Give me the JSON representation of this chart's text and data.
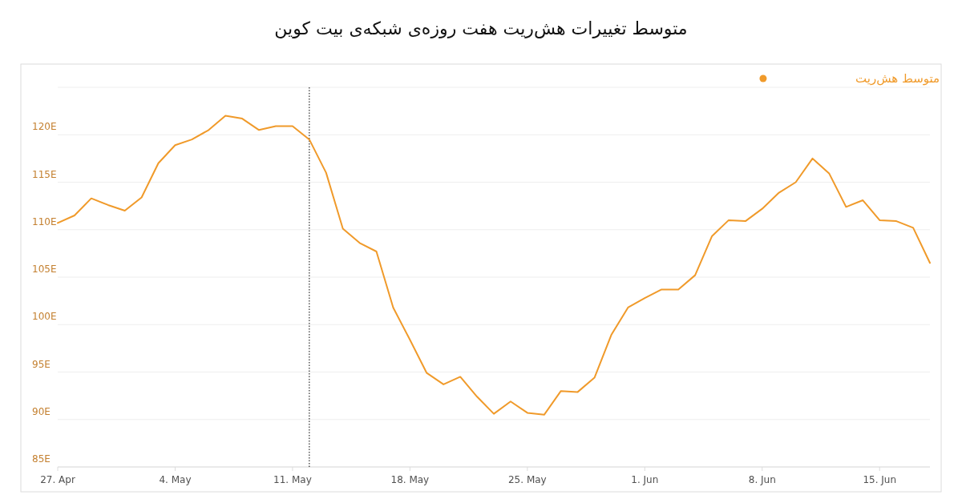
{
  "chart_data": {
    "type": "line",
    "title": "متوسط تغییرات هش‌ریت هفت روزه‌ی شبکه‌ی بیت کوین",
    "x": [
      "--04-27",
      "--04-28",
      "--04-29",
      "--04-30",
      "--05-01",
      "--05-02",
      "--05-03",
      "--05-04",
      "--05-05",
      "--05-06",
      "--05-07",
      "--05-08",
      "--05-09",
      "--05-10",
      "--05-11",
      "--05-12",
      "--05-13",
      "--05-14",
      "--05-15",
      "--05-16",
      "--05-17",
      "--05-18",
      "--05-19",
      "--05-20",
      "--05-21",
      "--05-22",
      "--05-23",
      "--05-24",
      "--05-25",
      "--05-26",
      "--05-27",
      "--05-28",
      "--05-29",
      "--05-30",
      "--05-31",
      "--06-01",
      "--06-02",
      "--06-03",
      "--06-04",
      "--06-05",
      "--06-06",
      "--06-07",
      "--06-08",
      "--06-09",
      "--06-10",
      "--06-11",
      "--06-12",
      "--06-13",
      "--06-14",
      "--06-15",
      "--06-16",
      "--06-17",
      "--06-18"
    ],
    "series": [
      {
        "name": "متوسط هش‌ریت",
        "color": "#f09a2a",
        "values": [
          110.7,
          111.5,
          113.3,
          112.6,
          112.0,
          113.4,
          117.0,
          118.9,
          119.5,
          120.5,
          122.0,
          121.7,
          120.5,
          120.9,
          120.9,
          119.5,
          116.0,
          110.1,
          108.6,
          107.7,
          101.8,
          98.4,
          94.9,
          93.7,
          94.5,
          92.4,
          90.6,
          91.9,
          90.7,
          90.5,
          93.0,
          92.9,
          94.4,
          98.9,
          101.8,
          102.8,
          103.7,
          103.7,
          105.2,
          109.3,
          111.0,
          110.9,
          112.2,
          113.9,
          115.0,
          117.5,
          115.9,
          112.4,
          113.1,
          111.0,
          110.9,
          110.2,
          106.5
        ]
      }
    ],
    "xlim": [
      "--04-27",
      "--06-18"
    ],
    "xticks": [
      {
        "value": "--04-27",
        "label": "27. Apr"
      },
      {
        "value": "--05-04",
        "label": "4. May"
      },
      {
        "value": "--05-11",
        "label": "11. May"
      },
      {
        "value": "--05-18",
        "label": "18. May"
      },
      {
        "value": "--05-25",
        "label": "25. May"
      },
      {
        "value": "--06-01",
        "label": "1. Jun"
      },
      {
        "value": "--06-08",
        "label": "8. Jun"
      },
      {
        "value": "--06-15",
        "label": "15. Jun"
      }
    ],
    "ylim": [
      85,
      125
    ],
    "yticks": [
      {
        "value": 85,
        "label": "85E"
      },
      {
        "value": 90,
        "label": "90E"
      },
      {
        "value": 95,
        "label": "95E"
      },
      {
        "value": 100,
        "label": "100E"
      },
      {
        "value": 105,
        "label": "105E"
      },
      {
        "value": 110,
        "label": "110E"
      },
      {
        "value": 115,
        "label": "115E"
      },
      {
        "value": 120,
        "label": "120E"
      },
      {
        "value": 125,
        "label": null
      }
    ],
    "grid": "y",
    "legend": "top right",
    "marker": "none",
    "ref_lines": [
      {
        "axis": "x",
        "value": "--05-12",
        "color": "#000000",
        "line_style": "dotted"
      }
    ]
  }
}
